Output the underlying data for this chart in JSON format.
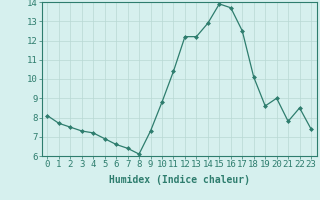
{
  "x": [
    0,
    1,
    2,
    3,
    4,
    5,
    6,
    7,
    8,
    9,
    10,
    11,
    12,
    13,
    14,
    15,
    16,
    17,
    18,
    19,
    20,
    21,
    22,
    23
  ],
  "y": [
    8.1,
    7.7,
    7.5,
    7.3,
    7.2,
    6.9,
    6.6,
    6.4,
    6.1,
    7.3,
    8.8,
    10.4,
    12.2,
    12.2,
    12.9,
    13.9,
    13.7,
    12.5,
    10.1,
    8.6,
    9.0,
    7.8,
    8.5,
    7.4
  ],
  "xlabel": "Humidex (Indice chaleur)",
  "ylim": [
    6,
    14
  ],
  "xlim": [
    -0.5,
    23.5
  ],
  "yticks": [
    6,
    7,
    8,
    9,
    10,
    11,
    12,
    13,
    14
  ],
  "xticks": [
    0,
    1,
    2,
    3,
    4,
    5,
    6,
    7,
    8,
    9,
    10,
    11,
    12,
    13,
    14,
    15,
    16,
    17,
    18,
    19,
    20,
    21,
    22,
    23
  ],
  "line_color": "#2e7d6e",
  "marker_color": "#2e7d6e",
  "bg_color": "#d6f0ee",
  "grid_color": "#b8d8d4",
  "tick_label_color": "#2e7d6e",
  "xlabel_color": "#2e7d6e",
  "xlabel_fontsize": 7,
  "tick_fontsize": 6.5
}
